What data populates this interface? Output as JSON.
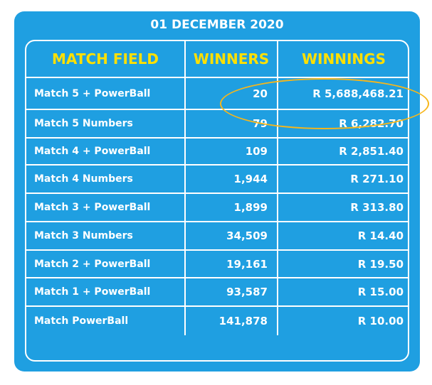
{
  "title": "01 DECEMBER 2020",
  "headers": {
    "match_field": "MATCH FIELD",
    "winners": "WINNERS",
    "winnings": "WINNINGS"
  },
  "rows": [
    {
      "field": "Match 5 + PowerBall",
      "winners": "20",
      "winnings": "R 5,688,468.21"
    },
    {
      "field": "Match 5 Numbers",
      "winners": "79",
      "winnings": "R 6,282.70"
    },
    {
      "field": "Match 4 + PowerBall",
      "winners": "109",
      "winnings": "R 2,851.40"
    },
    {
      "field": "Match 4 Numbers",
      "winners": "1,944",
      "winnings": "R 271.10"
    },
    {
      "field": "Match 3 + PowerBall",
      "winners": "1,899",
      "winnings": "R 313.80"
    },
    {
      "field": "Match 3 Numbers",
      "winners": "34,509",
      "winnings": "R 14.40"
    },
    {
      "field": "Match 2 + PowerBall",
      "winners": "19,161",
      "winnings": "R 19.50"
    },
    {
      "field": "Match 1 + PowerBall",
      "winners": "93,587",
      "winnings": "R 15.00"
    },
    {
      "field": "Match PowerBall",
      "winners": "141,878",
      "winnings": "R 10.00"
    }
  ],
  "colors": {
    "background": "#1f9fe1",
    "header_text": "#ffe000",
    "text": "#ffffff",
    "highlight": "#f7b61a"
  }
}
